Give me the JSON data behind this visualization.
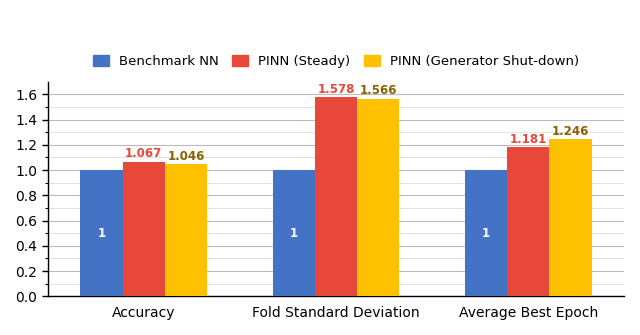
{
  "categories": [
    "Accuracy",
    "Fold Standard Deviation",
    "Average Best Epoch"
  ],
  "series": [
    {
      "label": "Benchmark NN",
      "color": "#4472C4",
      "values": [
        1,
        1,
        1
      ],
      "label_color": "white"
    },
    {
      "label": "PINN (Steady)",
      "color": "#E8483A",
      "values": [
        1.067,
        1.578,
        1.181
      ],
      "label_color": "#E8483A"
    },
    {
      "label": "PINN (Generator Shut-down)",
      "color": "#FFC000",
      "values": [
        1.046,
        1.566,
        1.246
      ],
      "label_color": "#8B6000"
    }
  ],
  "ylim": [
    0,
    1.7
  ],
  "yticks_major": [
    0.0,
    0.2,
    0.4,
    0.6,
    0.8,
    1.0,
    1.2,
    1.4,
    1.6
  ],
  "yticks_minor": [
    0.1,
    0.3,
    0.5,
    0.7,
    0.9,
    1.1,
    1.3,
    1.5
  ],
  "bar_width": 0.22,
  "label_fontsize": 8.5,
  "tick_fontsize": 10,
  "legend_fontsize": 9.5,
  "major_grid_color": "#bbbbbb",
  "minor_grid_color": "#dddddd",
  "background_color": "#ffffff"
}
